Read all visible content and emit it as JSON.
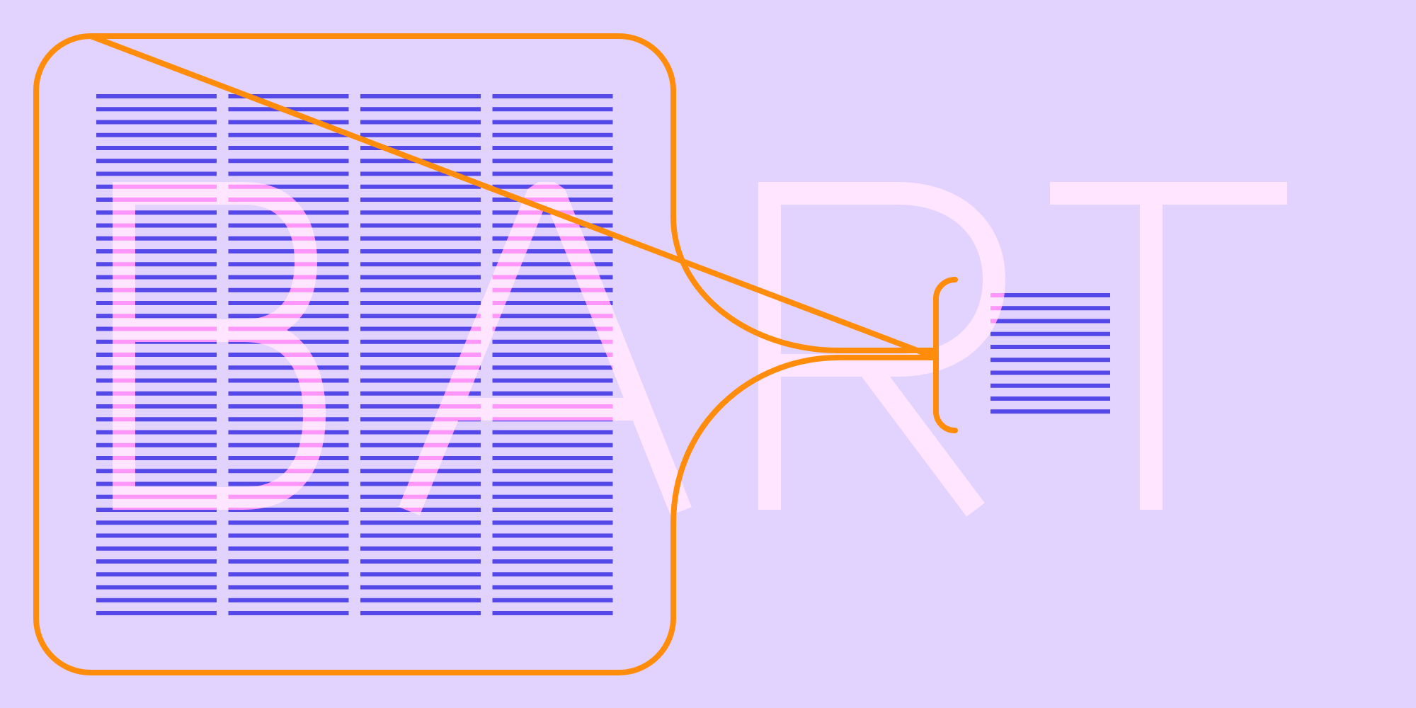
{
  "logo": {
    "text": "BART"
  },
  "colors": {
    "background": "#e2d2fe",
    "lines": "#5548e8",
    "letters": "#ffd0f8",
    "frame": "#ff8c0a"
  },
  "pattern": {
    "main_columns": 4,
    "main_rows": 41,
    "side_columns": 1,
    "side_rows": 10
  }
}
